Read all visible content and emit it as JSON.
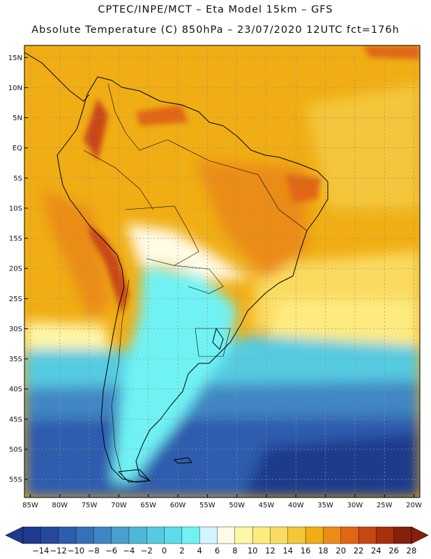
{
  "title": "CPTEC/INPE/MCT –  Eta Model 15km – GFS",
  "subtitle": "Absolute Temperature (C) 850hPa – 23/07/2020 12UTC fct=176h",
  "map": {
    "lon_min": -86,
    "lon_max": -19,
    "lat_min": -58,
    "lat_max": 17,
    "lat_ticks": [
      {
        "label": "15N",
        "lat": 15
      },
      {
        "label": "10N",
        "lat": 10
      },
      {
        "label": "5N",
        "lat": 5
      },
      {
        "label": "EQ",
        "lat": 0
      },
      {
        "label": "5S",
        "lat": -5
      },
      {
        "label": "10S",
        "lat": -10
      },
      {
        "label": "15S",
        "lat": -15
      },
      {
        "label": "20S",
        "lat": -20
      },
      {
        "label": "25S",
        "lat": -25
      },
      {
        "label": "30S",
        "lat": -30
      },
      {
        "label": "35S",
        "lat": -35
      },
      {
        "label": "40S",
        "lat": -40
      },
      {
        "label": "45S",
        "lat": -45
      },
      {
        "label": "50S",
        "lat": -50
      },
      {
        "label": "55S",
        "lat": -55
      }
    ],
    "lon_ticks": [
      {
        "label": "85W",
        "lon": -85
      },
      {
        "label": "80W",
        "lon": -80
      },
      {
        "label": "75W",
        "lon": -75
      },
      {
        "label": "70W",
        "lon": -70
      },
      {
        "label": "65W",
        "lon": -65
      },
      {
        "label": "60W",
        "lon": -60
      },
      {
        "label": "55W",
        "lon": -55
      },
      {
        "label": "50W",
        "lon": -50
      },
      {
        "label": "45W",
        "lon": -45
      },
      {
        "label": "40W",
        "lon": -40
      },
      {
        "label": "35W",
        "lon": -35
      },
      {
        "label": "30W",
        "lon": -30
      },
      {
        "label": "25W",
        "lon": -25
      },
      {
        "label": "20W",
        "lon": -20
      }
    ]
  },
  "colorbar": {
    "labels": [
      "-14",
      "-12",
      "-10",
      "-8",
      "-6",
      "-4",
      "-2",
      "0",
      "2",
      "4",
      "6",
      "8",
      "10",
      "12",
      "14",
      "16",
      "18",
      "20",
      "22",
      "24",
      "26",
      "28"
    ],
    "colors": [
      "#1e3a8c",
      "#26499e",
      "#2e5cae",
      "#3670b9",
      "#3f87c4",
      "#48a0cc",
      "#4fb8d6",
      "#55cbe1",
      "#5ddbe9",
      "#70f2f4",
      "#d2f6ff",
      "#fffbe6",
      "#fff6a8",
      "#feeb80",
      "#fadb60",
      "#f4c63a",
      "#f0ae14",
      "#eb8c18",
      "#e06614",
      "#c94612",
      "#a8300e",
      "#86200c"
    ],
    "under_color": "#1e3a8c",
    "over_color": "#86200c"
  },
  "field": {
    "south_ocean": "#1e3a8c",
    "south_ocean_mid": "#2e5cae",
    "ocean_cool": "#3f87c4",
    "ocean_cyan": "#55cbe1",
    "land_cold": "#70f2f4",
    "pale": "#fffbe6",
    "yellow": "#fadb60",
    "warm": "#f4c63a",
    "orange": "#f0ae14",
    "hot": "#eb8c18",
    "andes": "#c94612"
  },
  "land_outline_color": "#000000"
}
